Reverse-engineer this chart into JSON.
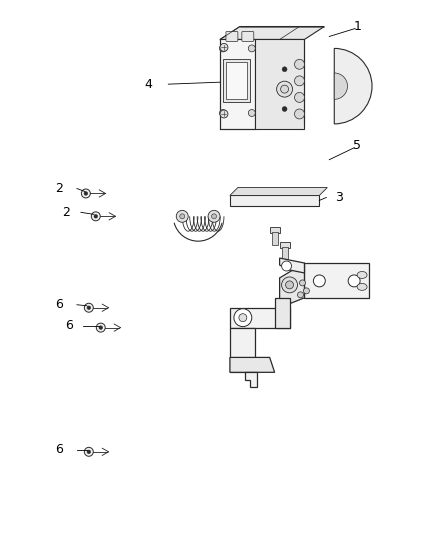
{
  "background_color": "#ffffff",
  "line_color": "#2a2a2a",
  "label_color": "#000000",
  "fig_width": 4.38,
  "fig_height": 5.33,
  "dpi": 100
}
